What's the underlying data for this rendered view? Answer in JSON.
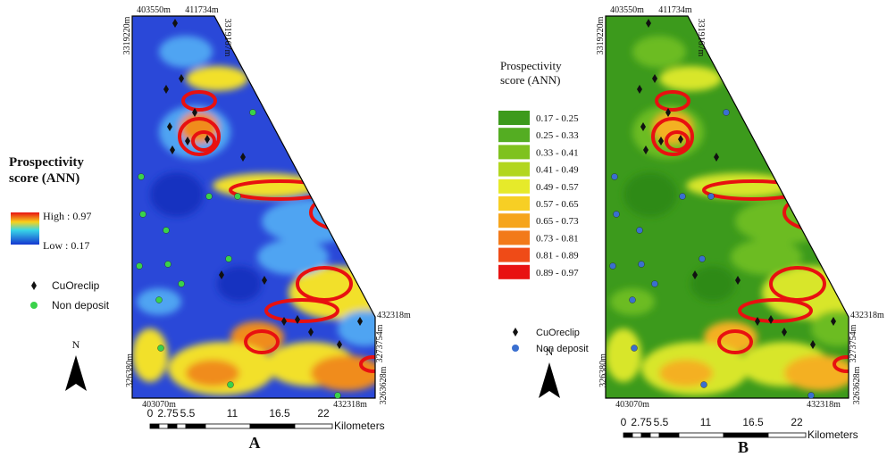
{
  "panels": [
    {
      "label": "A",
      "coordinates": {
        "top_left": "403550m",
        "top_right": "411734m",
        "left_top": "3319220m",
        "right_top": "3319167m",
        "right_mid": "432318m",
        "right_lower": "3273754m",
        "left_bottom": "326380m",
        "bottom_left": "403070m",
        "bottom_right": "432318m",
        "right_bottom": "3263628m"
      },
      "legend": {
        "title_lines": [
          "Prospectivity",
          "score (ANN)"
        ],
        "high": "High : 0.97",
        "low": "Low : 0.17",
        "deposit": "CuOreclip",
        "non_deposit": "Non deposit"
      },
      "north": "N",
      "scale": {
        "labels": [
          "0",
          "2.75",
          "5.5",
          "11",
          "16.5",
          "22"
        ],
        "unit": "Kilometers"
      }
    },
    {
      "label": "B",
      "coordinates": {
        "top_left": "403550m",
        "top_right": "411734m",
        "left_top": "3319220m",
        "right_top": "3319167m",
        "right_mid": "432318m",
        "right_lower": "3273754m",
        "left_bottom": "326380m",
        "bottom_left": "403070m",
        "bottom_right": "432318m",
        "right_bottom": "3263628m"
      },
      "legend": {
        "title_lines": [
          "Prospectivity",
          "score (ANN)"
        ],
        "classes": [
          {
            "label": "0.17 - 0.25",
            "color": "#3c9a1c"
          },
          {
            "label": "0.25 - 0.33",
            "color": "#54ad22"
          },
          {
            "label": "0.33 - 0.41",
            "color": "#7fc21e"
          },
          {
            "label": "0.41 - 0.49",
            "color": "#b2d61e"
          },
          {
            "label": "0.49 - 0.57",
            "color": "#e6ea2a"
          },
          {
            "label": "0.57 - 0.65",
            "color": "#f7cf24"
          },
          {
            "label": "0.65 - 0.73",
            "color": "#f6a51c"
          },
          {
            "label": "0.73 - 0.81",
            "color": "#f27a1a"
          },
          {
            "label": "0.81 - 0.89",
            "color": "#ef4b17"
          },
          {
            "label": "0.89 - 0.97",
            "color": "#e81212"
          }
        ],
        "deposit": "CuOreclip",
        "non_deposit": "Non deposit"
      },
      "north": "N",
      "scale": {
        "labels": [
          "0",
          "2.75",
          "5.5",
          "11",
          "16.5",
          "22"
        ],
        "unit": "Kilometers"
      }
    }
  ]
}
